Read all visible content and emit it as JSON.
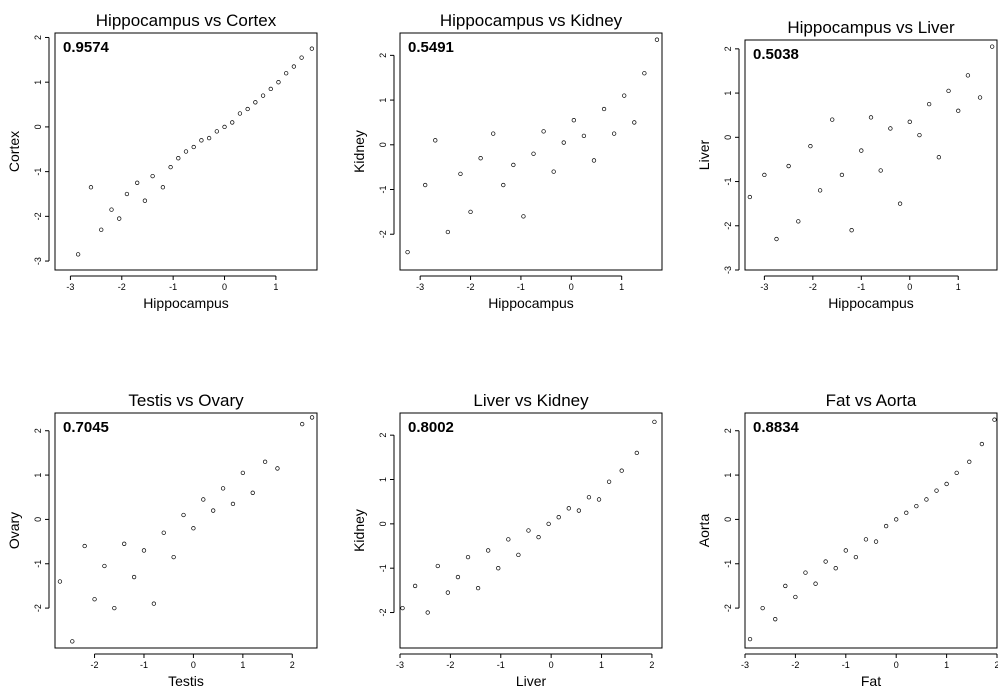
{
  "chart_data": [
    {
      "type": "scatter",
      "title": "Hippocampus vs Cortex",
      "xlabel": "Hippocampus",
      "ylabel": "Cortex",
      "correlation_label": "0.9574",
      "xlim": [
        -3.3,
        1.8
      ],
      "ylim": [
        -3.2,
        2.1
      ],
      "xticks": [
        -3,
        -2,
        -1,
        0,
        1
      ],
      "yticks": [
        -3,
        -2,
        -1,
        0,
        1,
        2
      ],
      "points": {
        "x": [
          -2.85,
          -2.6,
          -2.4,
          -2.2,
          -2.05,
          -1.9,
          -1.7,
          -1.55,
          -1.4,
          -1.2,
          -1.05,
          -0.9,
          -0.75,
          -0.6,
          -0.45,
          -0.3,
          -0.15,
          0,
          0.15,
          0.3,
          0.45,
          0.6,
          0.75,
          0.9,
          1.05,
          1.2,
          1.35,
          1.5,
          1.7
        ],
        "y": [
          -2.85,
          -1.35,
          -2.3,
          -1.85,
          -2.05,
          -1.5,
          -1.25,
          -1.65,
          -1.1,
          -1.35,
          -0.9,
          -0.7,
          -0.55,
          -0.45,
          -0.3,
          -0.25,
          -0.1,
          0,
          0.1,
          0.3,
          0.4,
          0.55,
          0.7,
          0.85,
          1.0,
          1.2,
          1.35,
          1.55,
          1.75
        ]
      }
    },
    {
      "type": "scatter",
      "title": "Hippocampus vs Kidney",
      "xlabel": "Hippocampus",
      "ylabel": "Kidney",
      "correlation_label": "0.5491",
      "xlim": [
        -3.4,
        1.8
      ],
      "ylim": [
        -2.8,
        2.5
      ],
      "xticks": [
        -3,
        -2,
        -1,
        0,
        1
      ],
      "yticks": [
        -2,
        -1,
        0,
        1,
        2
      ],
      "points": {
        "x": [
          -3.25,
          -2.9,
          -2.7,
          -2.45,
          -2.2,
          -2.0,
          -1.8,
          -1.55,
          -1.35,
          -1.15,
          -0.95,
          -0.75,
          -0.55,
          -0.35,
          -0.15,
          0.05,
          0.25,
          0.45,
          0.65,
          0.85,
          1.05,
          1.25,
          1.45,
          1.7
        ],
        "y": [
          -2.4,
          -0.9,
          0.1,
          -1.95,
          -0.65,
          -1.5,
          -0.3,
          0.25,
          -0.9,
          -0.45,
          -1.6,
          -0.2,
          0.3,
          -0.6,
          0.05,
          0.55,
          0.2,
          -0.35,
          0.8,
          0.25,
          1.1,
          0.5,
          1.6,
          2.35
        ]
      }
    },
    {
      "type": "scatter",
      "title": "Hippocampus vs Liver",
      "xlabel": "Hippocampus",
      "ylabel": "Liver",
      "correlation_label": "0.5038",
      "xlim": [
        -3.4,
        1.8
      ],
      "ylim": [
        -3.0,
        2.2
      ],
      "xticks": [
        -3,
        -2,
        -1,
        0,
        1
      ],
      "yticks": [
        -3,
        -2,
        -1,
        0,
        1,
        2
      ],
      "points": {
        "x": [
          -3.3,
          -3.0,
          -2.75,
          -2.5,
          -2.3,
          -2.05,
          -1.85,
          -1.6,
          -1.4,
          -1.2,
          -1.0,
          -0.8,
          -0.6,
          -0.4,
          -0.2,
          0,
          0.2,
          0.4,
          0.6,
          0.8,
          1.0,
          1.2,
          1.45,
          1.7
        ],
        "y": [
          -1.35,
          -0.85,
          -2.3,
          -0.65,
          -1.9,
          -0.2,
          -1.2,
          0.4,
          -0.85,
          -2.1,
          -0.3,
          0.45,
          -0.75,
          0.2,
          -1.5,
          0.35,
          0.05,
          0.75,
          -0.45,
          1.05,
          0.6,
          1.4,
          0.9,
          2.05
        ]
      }
    },
    {
      "type": "scatter",
      "title": "Testis vs Ovary",
      "xlabel": "Testis",
      "ylabel": "Ovary",
      "correlation_label": "0.7045",
      "xlim": [
        -2.8,
        2.5
      ],
      "ylim": [
        -2.9,
        2.4
      ],
      "xticks": [
        -2,
        -1,
        0,
        1,
        2
      ],
      "yticks": [
        -2,
        -1,
        0,
        1,
        2
      ],
      "points": {
        "x": [
          -2.7,
          -2.45,
          -2.2,
          -2.0,
          -1.8,
          -1.6,
          -1.4,
          -1.2,
          -1.0,
          -0.8,
          -0.6,
          -0.4,
          -0.2,
          0,
          0.2,
          0.4,
          0.6,
          0.8,
          1.0,
          1.2,
          1.45,
          1.7,
          2.2,
          2.4
        ],
        "y": [
          -1.4,
          -2.75,
          -0.6,
          -1.8,
          -1.05,
          -2.0,
          -0.55,
          -1.3,
          -0.7,
          -1.9,
          -0.3,
          -0.85,
          0.1,
          -0.2,
          0.45,
          0.2,
          0.7,
          0.35,
          1.05,
          0.6,
          1.3,
          1.15,
          2.15,
          2.3
        ]
      }
    },
    {
      "type": "scatter",
      "title": "Liver vs Kidney",
      "xlabel": "Liver",
      "ylabel": "Kidney",
      "correlation_label": "0.8002",
      "xlim": [
        -3.0,
        2.2
      ],
      "ylim": [
        -2.8,
        2.5
      ],
      "xticks": [
        -3,
        -2,
        -1,
        0,
        1,
        2
      ],
      "yticks": [
        -2,
        -1,
        0,
        1,
        2
      ],
      "points": {
        "x": [
          -2.95,
          -2.7,
          -2.45,
          -2.25,
          -2.05,
          -1.85,
          -1.65,
          -1.45,
          -1.25,
          -1.05,
          -0.85,
          -0.65,
          -0.45,
          -0.25,
          -0.05,
          0.15,
          0.35,
          0.55,
          0.75,
          0.95,
          1.15,
          1.4,
          1.7,
          2.05
        ],
        "y": [
          -1.9,
          -1.4,
          -2.0,
          -0.95,
          -1.55,
          -1.2,
          -0.75,
          -1.45,
          -0.6,
          -1.0,
          -0.35,
          -0.7,
          -0.15,
          -0.3,
          0.0,
          0.15,
          0.35,
          0.3,
          0.6,
          0.55,
          0.95,
          1.2,
          1.6,
          2.3
        ]
      }
    },
    {
      "type": "scatter",
      "title": "Fat vs Aorta",
      "xlabel": "Fat",
      "ylabel": "Aorta",
      "correlation_label": "0.8834",
      "xlim": [
        -3.0,
        2.0
      ],
      "ylim": [
        -2.9,
        2.4
      ],
      "xticks": [
        -3,
        -2,
        -1,
        0,
        1,
        2
      ],
      "yticks": [
        -2,
        -1,
        0,
        1,
        2
      ],
      "points": {
        "x": [
          -2.9,
          -2.65,
          -2.4,
          -2.2,
          -2.0,
          -1.8,
          -1.6,
          -1.4,
          -1.2,
          -1.0,
          -0.8,
          -0.6,
          -0.4,
          -0.2,
          0,
          0.2,
          0.4,
          0.6,
          0.8,
          1.0,
          1.2,
          1.45,
          1.7,
          1.95
        ],
        "y": [
          -2.7,
          -2.0,
          -2.25,
          -1.5,
          -1.75,
          -1.2,
          -1.45,
          -0.95,
          -1.1,
          -0.7,
          -0.85,
          -0.45,
          -0.5,
          -0.15,
          0.0,
          0.15,
          0.3,
          0.45,
          0.65,
          0.8,
          1.05,
          1.3,
          1.7,
          2.25
        ]
      }
    }
  ]
}
